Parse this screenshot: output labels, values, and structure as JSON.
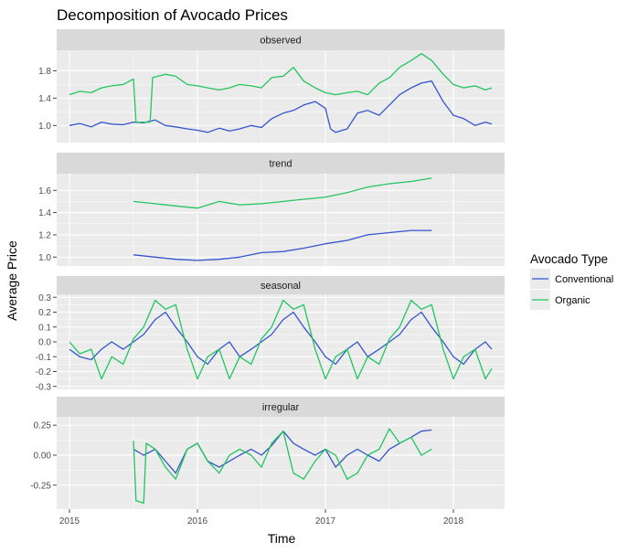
{
  "title": "Decomposition of Avocado Prices",
  "xlabel": "Time",
  "ylabel": "Average Price",
  "legend": {
    "title": "Avocado Type",
    "placement": "right",
    "items": [
      {
        "label": "Conventional",
        "color": "#3355cc"
      },
      {
        "label": "Organic",
        "color": "#22c55e"
      }
    ]
  },
  "colors": {
    "panel_bg": "#ebebeb",
    "strip_bg": "#d9d9d9",
    "grid": "#ffffff",
    "conventional": "#3355cc",
    "organic": "#22c55e"
  },
  "chart_data": {
    "type": "line",
    "x_axis": {
      "ticks": [
        "2015",
        "2016",
        "2017",
        "2018"
      ],
      "range": [
        2014.9,
        2018.4
      ]
    },
    "panels": [
      {
        "strip": "observed",
        "ylim": [
          0.75,
          2.1
        ],
        "yticks": [
          1.0,
          1.4,
          1.8
        ],
        "ytick_labels": [
          "1.0",
          "1.4",
          "1.8"
        ],
        "series": [
          {
            "name": "Conventional",
            "x": [
              2015.0,
              2015.08,
              2015.17,
              2015.25,
              2015.33,
              2015.42,
              2015.5,
              2015.58,
              2015.67,
              2015.75,
              2015.83,
              2015.92,
              2016.0,
              2016.08,
              2016.17,
              2016.25,
              2016.33,
              2016.42,
              2016.5,
              2016.58,
              2016.67,
              2016.75,
              2016.83,
              2016.92,
              2017.0,
              2017.04,
              2017.08,
              2017.17,
              2017.25,
              2017.33,
              2017.42,
              2017.5,
              2017.58,
              2017.67,
              2017.75,
              2017.83,
              2017.92,
              2018.0,
              2018.08,
              2018.17,
              2018.25,
              2018.3
            ],
            "y": [
              1.0,
              1.03,
              0.98,
              1.05,
              1.02,
              1.01,
              1.05,
              1.04,
              1.08,
              1.0,
              0.98,
              0.95,
              0.93,
              0.9,
              0.96,
              0.92,
              0.95,
              1.0,
              0.97,
              1.1,
              1.18,
              1.22,
              1.3,
              1.35,
              1.25,
              0.95,
              0.9,
              0.95,
              1.18,
              1.22,
              1.15,
              1.3,
              1.45,
              1.55,
              1.62,
              1.65,
              1.35,
              1.15,
              1.1,
              1.0,
              1.05,
              1.02
            ]
          },
          {
            "name": "Organic",
            "x": [
              2015.0,
              2015.08,
              2015.17,
              2015.25,
              2015.33,
              2015.42,
              2015.5,
              2015.52,
              2015.63,
              2015.65,
              2015.75,
              2015.83,
              2015.92,
              2016.0,
              2016.08,
              2016.17,
              2016.25,
              2016.33,
              2016.42,
              2016.5,
              2016.58,
              2016.67,
              2016.75,
              2016.83,
              2016.92,
              2017.0,
              2017.08,
              2017.17,
              2017.25,
              2017.33,
              2017.42,
              2017.5,
              2017.58,
              2017.67,
              2017.75,
              2017.83,
              2017.92,
              2018.0,
              2018.08,
              2018.17,
              2018.25,
              2018.3
            ],
            "y": [
              1.45,
              1.5,
              1.48,
              1.55,
              1.58,
              1.6,
              1.68,
              1.05,
              1.05,
              1.7,
              1.75,
              1.72,
              1.6,
              1.58,
              1.55,
              1.52,
              1.55,
              1.6,
              1.58,
              1.55,
              1.7,
              1.72,
              1.85,
              1.65,
              1.55,
              1.48,
              1.45,
              1.48,
              1.5,
              1.45,
              1.62,
              1.7,
              1.85,
              1.95,
              2.05,
              1.95,
              1.75,
              1.6,
              1.55,
              1.58,
              1.52,
              1.55
            ]
          }
        ]
      },
      {
        "strip": "trend",
        "ylim": [
          0.92,
          1.75
        ],
        "yticks": [
          1.0,
          1.2,
          1.4,
          1.6
        ],
        "ytick_labels": [
          "1.0",
          "1.2",
          "1.4",
          "1.6"
        ],
        "series": [
          {
            "name": "Conventional",
            "x": [
              2015.5,
              2015.67,
              2015.83,
              2016.0,
              2016.17,
              2016.33,
              2016.5,
              2016.67,
              2016.83,
              2017.0,
              2017.17,
              2017.33,
              2017.5,
              2017.67,
              2017.83
            ],
            "y": [
              1.02,
              1.0,
              0.98,
              0.97,
              0.98,
              1.0,
              1.04,
              1.05,
              1.08,
              1.12,
              1.15,
              1.2,
              1.22,
              1.24,
              1.24
            ]
          },
          {
            "name": "Organic",
            "x": [
              2015.5,
              2015.67,
              2015.83,
              2016.0,
              2016.17,
              2016.33,
              2016.5,
              2016.67,
              2016.83,
              2017.0,
              2017.17,
              2017.33,
              2017.5,
              2017.67,
              2017.83
            ],
            "y": [
              1.5,
              1.48,
              1.46,
              1.44,
              1.5,
              1.47,
              1.48,
              1.5,
              1.52,
              1.54,
              1.58,
              1.63,
              1.66,
              1.68,
              1.71
            ]
          }
        ]
      },
      {
        "strip": "seasonal",
        "ylim": [
          -0.32,
          0.32
        ],
        "yticks": [
          -0.3,
          -0.2,
          -0.1,
          0.0,
          0.1,
          0.2,
          0.3
        ],
        "ytick_labels": [
          "-0.3",
          "-0.2",
          "-0.1",
          "0.0",
          "0.1",
          "0.2",
          "0.3"
        ],
        "series": [
          {
            "name": "Conventional",
            "x": [
              2015.0,
              2015.08,
              2015.17,
              2015.25,
              2015.33,
              2015.42,
              2015.5,
              2015.58,
              2015.67,
              2015.75,
              2015.83,
              2015.92,
              2016.0,
              2016.08,
              2016.17,
              2016.25,
              2016.33,
              2016.42,
              2016.5,
              2016.58,
              2016.67,
              2016.75,
              2016.83,
              2016.92,
              2017.0,
              2017.08,
              2017.17,
              2017.25,
              2017.33,
              2017.42,
              2017.5,
              2017.58,
              2017.67,
              2017.75,
              2017.83,
              2017.92,
              2018.0,
              2018.08,
              2018.17,
              2018.25,
              2018.3
            ],
            "y": [
              -0.05,
              -0.1,
              -0.12,
              -0.05,
              0.0,
              -0.05,
              0.0,
              0.05,
              0.15,
              0.2,
              0.1,
              0.0,
              -0.1,
              -0.15,
              -0.05,
              0.0,
              -0.1,
              -0.05,
              0.0,
              0.05,
              0.15,
              0.2,
              0.1,
              0.0,
              -0.1,
              -0.15,
              -0.05,
              0.0,
              -0.1,
              -0.05,
              0.0,
              0.05,
              0.15,
              0.2,
              0.1,
              0.0,
              -0.1,
              -0.15,
              -0.05,
              0.0,
              -0.05
            ]
          },
          {
            "name": "Organic",
            "x": [
              2015.0,
              2015.08,
              2015.17,
              2015.25,
              2015.33,
              2015.42,
              2015.5,
              2015.58,
              2015.67,
              2015.75,
              2015.83,
              2015.92,
              2016.0,
              2016.08,
              2016.17,
              2016.25,
              2016.33,
              2016.42,
              2016.5,
              2016.58,
              2016.67,
              2016.75,
              2016.83,
              2016.92,
              2017.0,
              2017.08,
              2017.17,
              2017.25,
              2017.33,
              2017.42,
              2017.5,
              2017.58,
              2017.67,
              2017.75,
              2017.83,
              2017.92,
              2018.0,
              2018.08,
              2018.17,
              2018.25,
              2018.3
            ],
            "y": [
              0.0,
              -0.08,
              -0.05,
              -0.25,
              -0.1,
              -0.15,
              0.02,
              0.1,
              0.28,
              0.22,
              0.25,
              -0.05,
              -0.25,
              -0.1,
              -0.05,
              -0.25,
              -0.1,
              -0.15,
              0.02,
              0.1,
              0.28,
              0.22,
              0.25,
              -0.05,
              -0.25,
              -0.1,
              -0.05,
              -0.25,
              -0.1,
              -0.15,
              0.02,
              0.1,
              0.28,
              0.22,
              0.25,
              -0.05,
              -0.25,
              -0.1,
              -0.05,
              -0.25,
              -0.18
            ]
          }
        ]
      },
      {
        "strip": "irregular",
        "ylim": [
          -0.45,
          0.32
        ],
        "yticks": [
          -0.25,
          0.0,
          0.25
        ],
        "ytick_labels": [
          "-0.25",
          "0.00",
          "0.25"
        ],
        "series": [
          {
            "name": "Conventional",
            "x": [
              2015.5,
              2015.58,
              2015.67,
              2015.75,
              2015.83,
              2015.92,
              2016.0,
              2016.08,
              2016.17,
              2016.25,
              2016.33,
              2016.42,
              2016.5,
              2016.58,
              2016.67,
              2016.75,
              2016.83,
              2016.92,
              2017.0,
              2017.08,
              2017.17,
              2017.25,
              2017.33,
              2017.42,
              2017.5,
              2017.58,
              2017.67,
              2017.75,
              2017.83
            ],
            "y": [
              0.05,
              0.0,
              0.05,
              -0.05,
              -0.15,
              0.05,
              0.1,
              -0.05,
              -0.1,
              -0.05,
              0.0,
              0.05,
              0.0,
              0.08,
              0.2,
              0.1,
              0.05,
              0.0,
              0.05,
              -0.1,
              0.0,
              0.05,
              0.0,
              -0.05,
              0.05,
              0.1,
              0.15,
              0.2,
              0.21
            ]
          },
          {
            "name": "Organic",
            "x": [
              2015.5,
              2015.52,
              2015.58,
              2015.6,
              2015.67,
              2015.75,
              2015.83,
              2015.92,
              2016.0,
              2016.08,
              2016.17,
              2016.25,
              2016.33,
              2016.42,
              2016.5,
              2016.58,
              2016.67,
              2016.75,
              2016.83,
              2016.92,
              2017.0,
              2017.08,
              2017.17,
              2017.25,
              2017.33,
              2017.42,
              2017.5,
              2017.58,
              2017.67,
              2017.75,
              2017.83
            ],
            "y": [
              0.12,
              -0.38,
              -0.4,
              0.1,
              0.05,
              -0.1,
              -0.2,
              0.05,
              0.1,
              -0.05,
              -0.15,
              0.0,
              0.05,
              0.0,
              -0.1,
              0.1,
              0.2,
              -0.15,
              -0.2,
              -0.05,
              0.05,
              0.0,
              -0.2,
              -0.15,
              0.0,
              0.05,
              0.22,
              0.1,
              0.15,
              0.0,
              0.05
            ]
          }
        ]
      }
    ]
  }
}
